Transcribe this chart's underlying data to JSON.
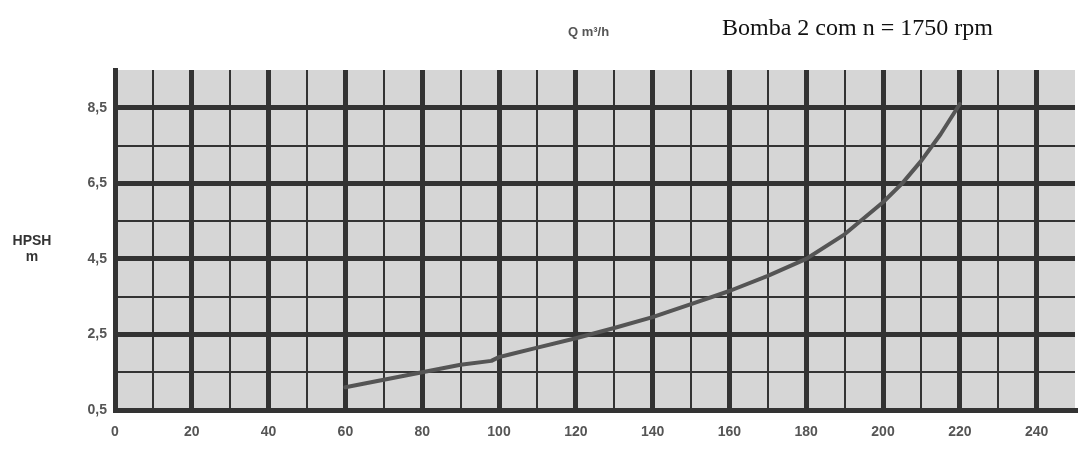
{
  "chart_data": {
    "type": "line",
    "title": "Bomba 2 com n = 1750 rpm",
    "xlabel": "Q m³/h",
    "ylabel": "HPSH m",
    "x": [
      60,
      70,
      80,
      90,
      98,
      100,
      110,
      120,
      130,
      140,
      150,
      160,
      170,
      180,
      190,
      200,
      205,
      210,
      215,
      220
    ],
    "series": [
      {
        "color": "#555555",
        "values": [
          1.1,
          1.3,
          1.5,
          1.7,
          1.8,
          1.9,
          2.15,
          2.4,
          2.67,
          2.96,
          3.3,
          3.65,
          4.05,
          4.5,
          5.15,
          6.0,
          6.5,
          7.1,
          7.8,
          8.6
        ]
      }
    ],
    "xlim": [
      0,
      250
    ],
    "xticks": [
      0,
      {
        "value": 10,
        "label": null
      },
      20,
      {
        "value": 30,
        "label": null
      },
      40,
      {
        "value": 50,
        "label": null
      },
      60,
      {
        "value": 70,
        "label": null
      },
      80,
      {
        "value": 90,
        "label": null
      },
      100,
      {
        "value": 110,
        "label": null
      },
      120,
      {
        "value": 130,
        "label": null
      },
      140,
      {
        "value": 150,
        "label": null
      },
      160,
      {
        "value": 170,
        "label": null
      },
      180,
      {
        "value": 190,
        "label": null
      },
      200,
      {
        "value": 210,
        "label": null
      },
      220,
      {
        "value": 230,
        "label": null
      },
      240
    ],
    "ylim": [
      0.5,
      9.5
    ],
    "yticks": [
      {
        "value": 0.5,
        "label": "0,5"
      },
      {
        "value": 1.5,
        "label": null
      },
      {
        "value": 2.5,
        "label": "2,5"
      },
      {
        "value": 3.5,
        "label": null
      },
      {
        "value": 4.5,
        "label": "4,5"
      },
      {
        "value": 5.5,
        "label": null
      },
      {
        "value": 6.5,
        "label": "6,5"
      },
      {
        "value": 7.5,
        "label": null
      },
      {
        "value": 8.5,
        "label": "8,5"
      }
    ],
    "grid": true,
    "marker": "none",
    "line_style": "solid"
  }
}
